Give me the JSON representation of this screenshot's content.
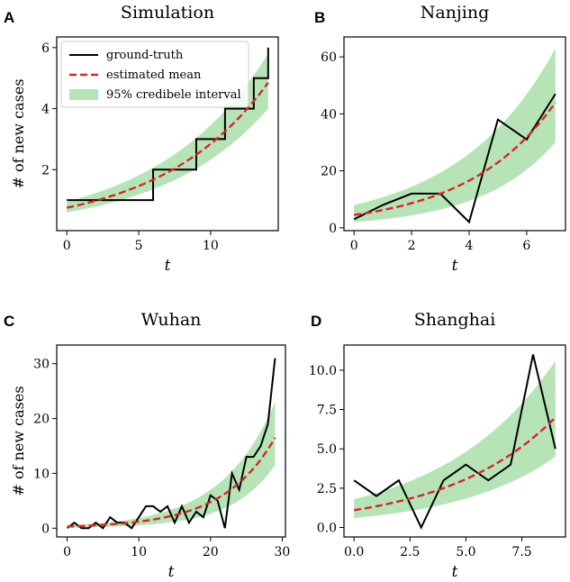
{
  "figure": {
    "ylabel": "# of new cases",
    "legend": {
      "ground_truth": "ground-truth",
      "estimated_mean": "estimated mean",
      "interval": "95% credibele interval"
    },
    "colors": {
      "ground_truth": "#000000",
      "estimated_mean": "#d62728",
      "interval": "#b7e4b7"
    }
  },
  "chart_data": [
    {
      "letter": "A",
      "type": "line",
      "title": "Simulation",
      "xlabel": "t",
      "ylabel": "# of new cases",
      "xlim": [
        -0.7,
        14.7
      ],
      "ylim": [
        0.0,
        6.35
      ],
      "xticks": [
        0,
        5,
        10
      ],
      "xtick_labels": [
        "0",
        "5",
        "10"
      ],
      "yticks": [
        2,
        4,
        6
      ],
      "ytick_labels": [
        "2",
        "4",
        "6"
      ],
      "legend_location": "top-left",
      "step": true,
      "ground_truth": {
        "x": [
          0,
          1,
          2,
          3,
          4,
          5,
          6,
          7,
          8,
          9,
          10,
          11,
          12,
          13,
          14
        ],
        "y": [
          1,
          1,
          1,
          1,
          1,
          1,
          2,
          2,
          2,
          3,
          3,
          4,
          4,
          5,
          6
        ]
      },
      "mean": {
        "x": [
          0,
          14
        ],
        "y": [
          0.75,
          4.85
        ],
        "curve": "exp"
      },
      "lower": {
        "x": [
          0,
          14
        ],
        "y": [
          0.6,
          4.0
        ],
        "curve": "exp"
      },
      "upper": {
        "x": [
          0,
          14
        ],
        "y": [
          0.95,
          5.8
        ],
        "curve": "exp"
      }
    },
    {
      "letter": "B",
      "type": "line",
      "title": "Nanjing",
      "xlabel": "t",
      "xlim": [
        -0.35,
        7.35
      ],
      "ylim": [
        -1,
        67
      ],
      "xticks": [
        0,
        2,
        4,
        6
      ],
      "xtick_labels": [
        "0",
        "2",
        "4",
        "6"
      ],
      "yticks": [
        0,
        20,
        40,
        60
      ],
      "ytick_labels": [
        "0",
        "20",
        "40",
        "60"
      ],
      "step": false,
      "ground_truth": {
        "x": [
          0,
          1,
          2,
          3,
          4,
          5,
          6,
          7
        ],
        "y": [
          3,
          8,
          12,
          12,
          2,
          38,
          31,
          47
        ]
      },
      "mean": {
        "x": [
          0,
          7
        ],
        "y": [
          4.5,
          44
        ],
        "curve": "exp"
      },
      "lower": {
        "x": [
          0,
          7
        ],
        "y": [
          2,
          30
        ],
        "curve": "exp"
      },
      "upper": {
        "x": [
          0,
          7
        ],
        "y": [
          8,
          63
        ],
        "curve": "exp"
      }
    },
    {
      "letter": "C",
      "type": "line",
      "title": "Wuhan",
      "xlabel": "t",
      "ylabel": "# of new cases",
      "xlim": [
        -1.45,
        30.45
      ],
      "ylim": [
        -1.6,
        33.4
      ],
      "xticks": [
        0,
        10,
        20,
        30
      ],
      "xtick_labels": [
        "0",
        "10",
        "20",
        "30"
      ],
      "yticks": [
        0,
        10,
        20,
        30
      ],
      "ytick_labels": [
        "0",
        "10",
        "20",
        "30"
      ],
      "step": false,
      "ground_truth": {
        "x": [
          0,
          1,
          2,
          3,
          4,
          5,
          6,
          7,
          8,
          9,
          10,
          11,
          12,
          13,
          14,
          15,
          16,
          17,
          18,
          19,
          20,
          21,
          22,
          23,
          24,
          25,
          26,
          27,
          28,
          29
        ],
        "y": [
          0,
          1,
          0,
          0,
          1,
          0,
          2,
          1,
          1,
          0,
          2,
          4,
          4,
          3,
          4,
          1,
          4,
          1,
          3,
          2,
          6,
          5,
          0,
          10,
          7,
          13,
          13,
          15,
          19,
          31
        ]
      },
      "mean": {
        "x": [
          0,
          29
        ],
        "y": [
          0.3,
          16.5
        ],
        "curve": "exp"
      },
      "lower": {
        "x": [
          0,
          29
        ],
        "y": [
          0.1,
          11.5
        ],
        "curve": "exp"
      },
      "upper": {
        "x": [
          0,
          29
        ],
        "y": [
          0.5,
          23
        ],
        "curve": "exp"
      }
    },
    {
      "letter": "D",
      "type": "line",
      "title": "Shanghai",
      "xlabel": "t",
      "xlim": [
        -0.45,
        9.45
      ],
      "ylim": [
        -0.6,
        11.6
      ],
      "xticks": [
        0,
        2.5,
        5,
        7.5
      ],
      "xtick_labels": [
        "0.0",
        "2.5",
        "5.0",
        "7.5"
      ],
      "yticks": [
        0,
        2.5,
        5,
        7.5,
        10
      ],
      "ytick_labels": [
        "0.0",
        "2.5",
        "5.0",
        "7.5",
        "10.0"
      ],
      "step": false,
      "ground_truth": {
        "x": [
          0,
          1,
          2,
          3,
          4,
          5,
          6,
          7,
          8,
          9
        ],
        "y": [
          3,
          2,
          3,
          0,
          3,
          4,
          3,
          4,
          11,
          5
        ]
      },
      "mean": {
        "x": [
          0,
          9
        ],
        "y": [
          1.1,
          7.0
        ],
        "curve": "exp"
      },
      "lower": {
        "x": [
          0,
          9
        ],
        "y": [
          0.6,
          4.5
        ],
        "curve": "exp"
      },
      "upper": {
        "x": [
          0,
          9
        ],
        "y": [
          1.8,
          10.6
        ],
        "curve": "exp"
      }
    }
  ]
}
